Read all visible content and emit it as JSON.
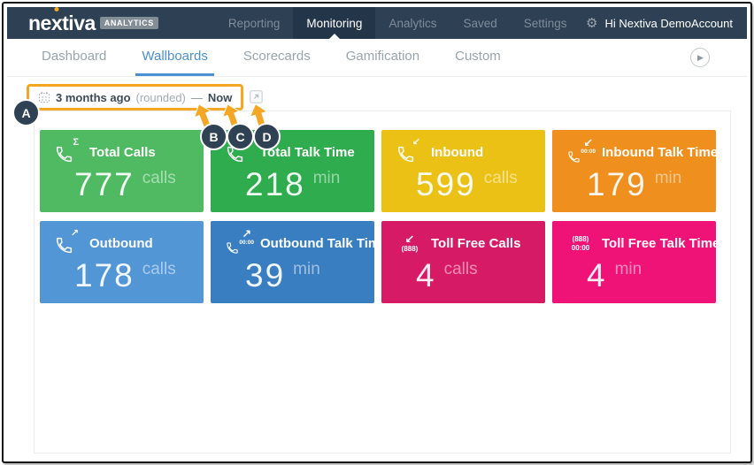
{
  "topnav": {
    "logo_text_left": "ne",
    "logo_text_x": "x",
    "logo_text_right": "tiva",
    "logo_badge": "ANALYTICS",
    "items": [
      {
        "label": "Reporting",
        "active": false
      },
      {
        "label": "Monitoring",
        "active": true
      },
      {
        "label": "Analytics",
        "active": false
      },
      {
        "label": "Saved",
        "active": false
      },
      {
        "label": "Settings",
        "active": false
      }
    ],
    "greeting": "Hi Nextiva DemoAccount"
  },
  "tabs": [
    {
      "label": "Dashboard",
      "active": false
    },
    {
      "label": "Wallboards",
      "active": true
    },
    {
      "label": "Scorecards",
      "active": false
    },
    {
      "label": "Gamification",
      "active": false
    },
    {
      "label": "Custom",
      "active": false
    }
  ],
  "toolbar": {
    "date_from": "3 months ago",
    "date_qualifier": "(rounded)",
    "date_separator": "—",
    "date_to": "Now",
    "icons": [
      "calendar-icon",
      "refresh-icon",
      "wallboard-list-icon",
      "open-external-icon"
    ]
  },
  "callouts": {
    "a": "A",
    "b": "B",
    "c": "C",
    "d": "D"
  },
  "colors": {
    "navbar_navy": "#2e4154",
    "active_tab_blue": "#4a90d2",
    "annotation_orange": "#f5a623",
    "callout_navy": "#2f4254"
  },
  "tiles": [
    {
      "label": "Total Calls",
      "value": "777",
      "unit": "calls",
      "color": "#4fba62",
      "icon": "phone-sigma-icon",
      "icon_glyphs": [
        "Σ"
      ]
    },
    {
      "label": "Total Talk Time",
      "value": "218",
      "unit": "min",
      "color": "#2fac4e",
      "icon": "phone-clock-icon",
      "icon_glyphs": []
    },
    {
      "label": "Inbound",
      "value": "599",
      "unit": "calls",
      "color": "#ecc115",
      "icon": "phone-inbound-icon",
      "icon_glyphs": [
        "↙"
      ]
    },
    {
      "label": "Inbound Talk Time",
      "value": "179",
      "unit": "min",
      "color": "#ef8f1d",
      "icon": "phone-inbound-time-icon",
      "icon_glyphs": [
        "↙",
        "00:00"
      ]
    },
    {
      "label": "Outbound",
      "value": "178",
      "unit": "calls",
      "color": "#5296d6",
      "icon": "phone-outbound-icon",
      "icon_glyphs": [
        "↗"
      ]
    },
    {
      "label": "Outbound Talk Time",
      "value": "39",
      "unit": "min",
      "color": "#3a7ec2",
      "icon": "phone-outbound-time-icon",
      "icon_glyphs": [
        "↗",
        "00:00"
      ]
    },
    {
      "label": "Toll Free Calls",
      "value": "4",
      "unit": "calls",
      "color": "#d71a66",
      "icon": "tollfree-calls-icon",
      "icon_glyphs": [
        "↙",
        "(888)"
      ]
    },
    {
      "label": "Toll Free Talk Time",
      "value": "4",
      "unit": "min",
      "color": "#ef1377",
      "icon": "tollfree-time-icon",
      "icon_glyphs": [
        "(888)",
        "00:00"
      ]
    }
  ]
}
